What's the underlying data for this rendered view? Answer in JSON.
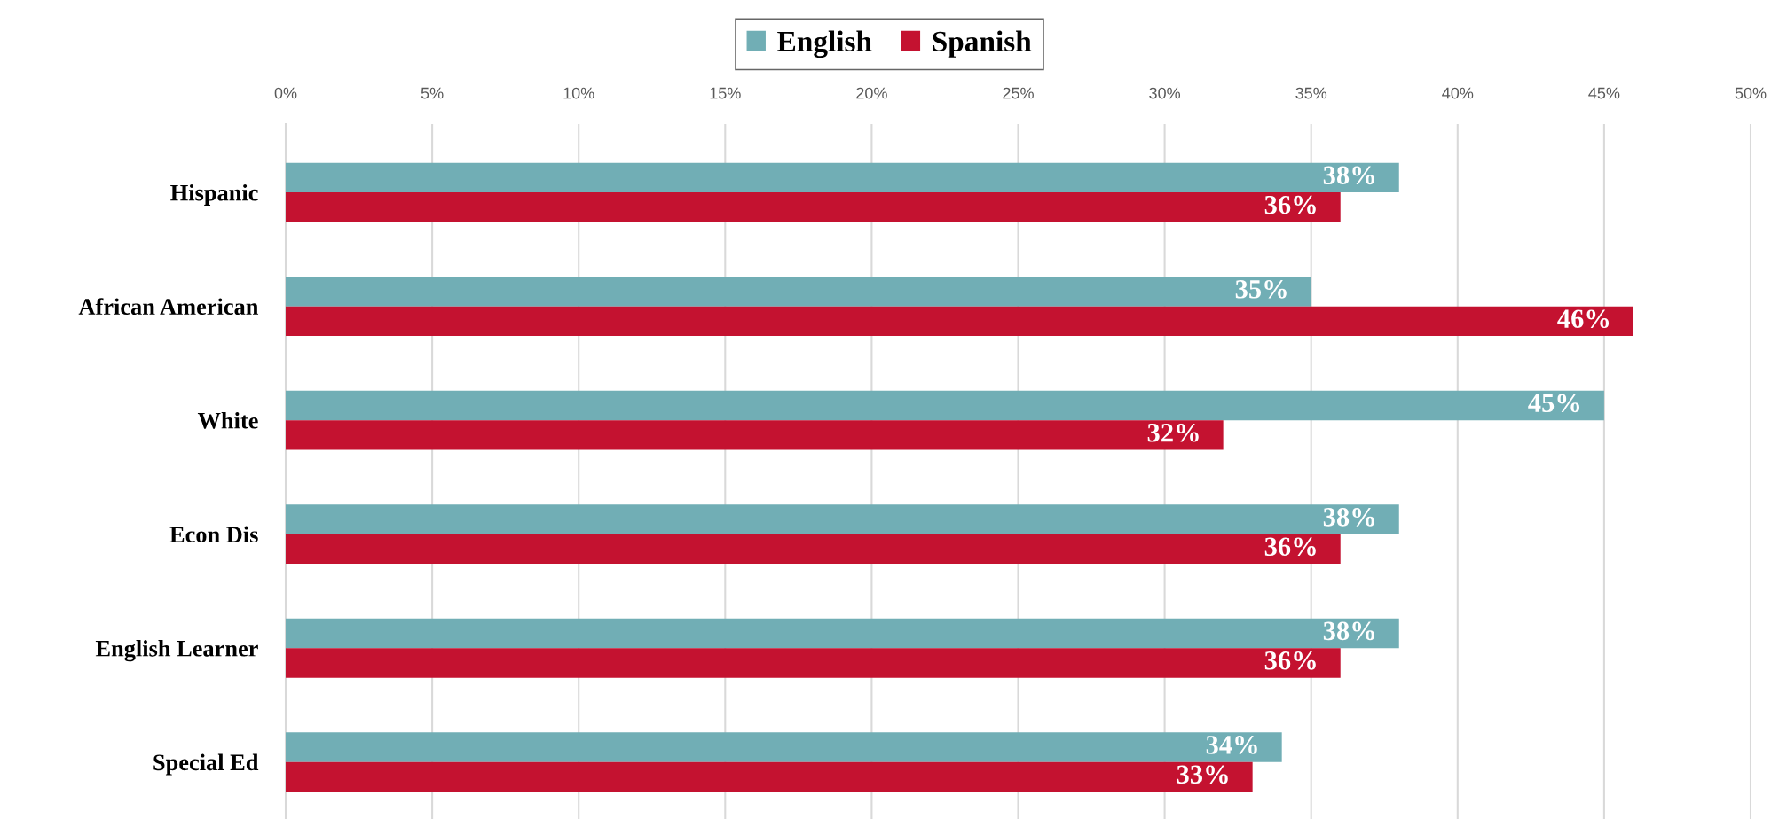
{
  "chart_data": {
    "type": "bar",
    "orientation": "horizontal",
    "categories": [
      "Hispanic",
      "African American",
      "White",
      "Econ Dis",
      "English Learner",
      "Special Ed"
    ],
    "series": [
      {
        "name": "English",
        "color": "#71aeb5",
        "values": [
          38,
          35,
          45,
          38,
          38,
          34
        ],
        "value_labels": [
          "38%",
          "35%",
          "45%",
          "38%",
          "38%",
          "34%"
        ]
      },
      {
        "name": "Spanish",
        "color": "#c41230",
        "values": [
          36,
          46,
          32,
          36,
          36,
          33
        ],
        "value_labels": [
          "36%",
          "46%",
          "32%",
          "36%",
          "36%",
          "33%"
        ]
      }
    ],
    "xlim": [
      0,
      50
    ],
    "xticks": [
      {
        "value": 0,
        "label": "0%"
      },
      {
        "value": 5,
        "label": "5%"
      },
      {
        "value": 10,
        "label": "10%"
      },
      {
        "value": 15,
        "label": "15%"
      },
      {
        "value": 20,
        "label": "20%"
      },
      {
        "value": 25,
        "label": "25%"
      },
      {
        "value": 30,
        "label": "30%"
      },
      {
        "value": 35,
        "label": "35%"
      },
      {
        "value": 40,
        "label": "40%"
      },
      {
        "value": 45,
        "label": "45%"
      },
      {
        "value": 50,
        "label": "50%"
      }
    ],
    "grid": "x",
    "legend": "top"
  }
}
